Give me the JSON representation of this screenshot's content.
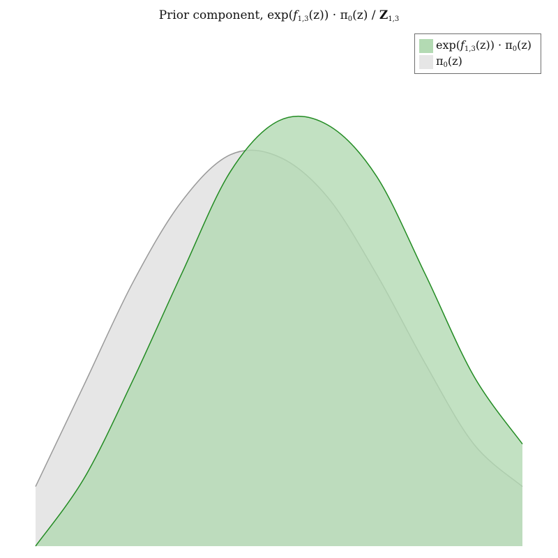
{
  "title": {
    "prefix": "Prior component, exp(",
    "f": "f",
    "f_sub": "1,3",
    "mid": "(z)) · π",
    "pi_sub": "0",
    "mid2": "(z) / ",
    "Z": "Z",
    "Z_sub": "1,3"
  },
  "legend": {
    "items": [
      {
        "label_pre": "exp(",
        "f": "f",
        "f_sub": "1,3",
        "label_mid": "(z)) · π",
        "pi_sub": "0",
        "label_post": "(z)",
        "color": "#b3dab3",
        "edge": "#228b22"
      },
      {
        "label_pre": "",
        "f": "",
        "f_sub": "",
        "label_mid": "π",
        "pi_sub": "0",
        "label_post": "(z)",
        "color": "#e6e6e6",
        "edge": "#999999"
      }
    ]
  },
  "chart_data": {
    "type": "area",
    "x_range": [
      0,
      1
    ],
    "y_range": [
      0,
      1
    ],
    "x": [
      0.0,
      0.1,
      0.2,
      0.3,
      0.4,
      0.5,
      0.6,
      0.7,
      0.8,
      0.9,
      1.0
    ],
    "series": [
      {
        "name": "π0(z)",
        "color": "#e6e6e6",
        "edge": "#999999",
        "values": [
          0.14,
          0.38,
          0.62,
          0.81,
          0.92,
          0.915,
          0.82,
          0.64,
          0.43,
          0.24,
          0.14
        ]
      },
      {
        "name": "exp(f1,3(z)) · π0(z)",
        "color": "#b3dab3",
        "edge": "#228b22",
        "values": [
          0.0,
          0.16,
          0.39,
          0.64,
          0.88,
          1.0,
          0.99,
          0.87,
          0.64,
          0.4,
          0.24
        ]
      }
    ]
  }
}
